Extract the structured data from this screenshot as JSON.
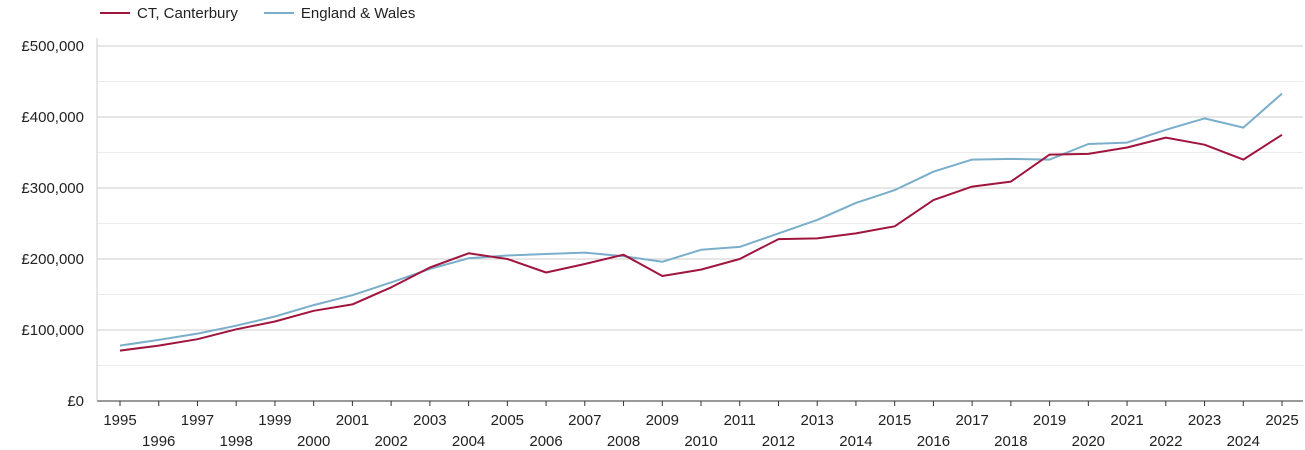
{
  "chart_data": {
    "type": "line",
    "title": "",
    "xlabel": "",
    "ylabel": "",
    "x": [
      1995,
      1996,
      1997,
      1998,
      1999,
      2000,
      2001,
      2002,
      2003,
      2004,
      2005,
      2006,
      2007,
      2008,
      2009,
      2010,
      2011,
      2012,
      2013,
      2014,
      2015,
      2016,
      2017,
      2018,
      2019,
      2020,
      2021,
      2022,
      2023,
      2024,
      2025
    ],
    "xlim": [
      1995,
      2025
    ],
    "ylim": [
      0,
      500000
    ],
    "yticks": [
      0,
      100000,
      200000,
      300000,
      400000,
      500000
    ],
    "ytick_labels": [
      "£0",
      "£100,000",
      "£200,000",
      "£300,000",
      "£400,000",
      "£500,000"
    ],
    "grid": true,
    "legend_position": "top-left",
    "series": [
      {
        "name": "CT, Canterbury",
        "color": "#a0153e",
        "values": [
          71000,
          78000,
          87000,
          101000,
          112000,
          127000,
          136000,
          160000,
          188000,
          208000,
          200000,
          181000,
          193000,
          206000,
          176000,
          185000,
          200000,
          228000,
          229000,
          236000,
          246000,
          283000,
          302000,
          309000,
          347000,
          348000,
          357000,
          371000,
          361000,
          340000,
          375000
        ]
      },
      {
        "name": "England & Wales",
        "color": "#7aaecb",
        "values": [
          78000,
          86000,
          95000,
          106000,
          119000,
          135000,
          149000,
          167000,
          186000,
          201000,
          205000,
          207000,
          209000,
          204000,
          196000,
          213000,
          217000,
          236000,
          255000,
          279000,
          297000,
          323000,
          340000,
          341000,
          340000,
          362000,
          364000,
          382000,
          398000,
          385000,
          433000
        ]
      }
    ]
  }
}
